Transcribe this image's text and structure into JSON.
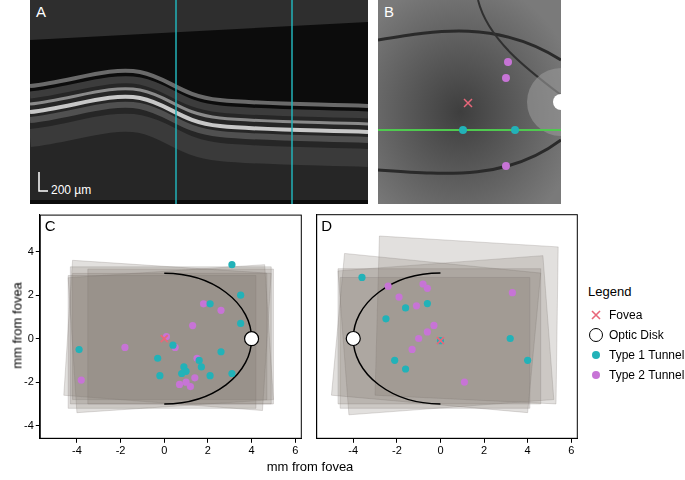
{
  "images": [
    {
      "label": "A",
      "scale_bar": "200 µm"
    },
    {
      "label": "B"
    }
  ],
  "x_label": "mm from fovea",
  "y_label": "mm from fovea",
  "legend_title": "Legend",
  "legend": "right",
  "chart_data": [
    {
      "type": "scatter",
      "label": "C",
      "xlim": [
        -5.7,
        6.3
      ],
      "xticks": [
        -4,
        -2,
        0,
        2,
        4,
        6
      ],
      "ylim": [
        -4.6,
        5.7
      ],
      "yticks": [
        -4,
        -2,
        0,
        2,
        4
      ],
      "grid": false,
      "series": [
        {
          "name": "Fovea",
          "color": "#e8677a",
          "marker": "x",
          "x": [
            0
          ],
          "y": [
            0
          ]
        },
        {
          "name": "Optic Disk",
          "color": "#ffffff",
          "marker": "ring",
          "x": [
            4
          ],
          "y": [
            0
          ]
        },
        {
          "name": "Type 1 Tunnel",
          "color": "#22b2b8",
          "marker": "dot",
          "x": [
            3.1,
            3.5,
            3.5,
            -3.9,
            -0.3,
            -0.2,
            0.4,
            0.9,
            1.0,
            0.8,
            1.6,
            1.7,
            2.1,
            2.6,
            3.1,
            2.1
          ],
          "y": [
            3.4,
            2.0,
            0.7,
            -0.5,
            -0.9,
            -1.7,
            -0.3,
            -1.3,
            -1.5,
            -1.6,
            -1.0,
            -1.3,
            -1.7,
            -0.6,
            -1.6,
            1.6
          ]
        },
        {
          "name": "Type 2 Tunnel",
          "color": "#c774d6",
          "marker": "dot",
          "x": [
            0.1,
            -1.8,
            -3.8,
            1.8,
            2.6,
            1.3,
            1.5,
            1.0,
            1.2,
            0.7,
            1.4,
            0.5
          ],
          "y": [
            0.1,
            -0.4,
            -1.9,
            1.6,
            1.3,
            0.6,
            -0.9,
            -2.0,
            -2.2,
            -2.1,
            -1.8,
            -0.4
          ]
        }
      ],
      "scan_areas": {
        "color": "#7a706b",
        "polygons": [
          [
            [
              -4.3,
              -3.0
            ],
            [
              4.9,
              -3.0
            ],
            [
              4.9,
              3.3
            ],
            [
              -4.3,
              3.3
            ]
          ],
          [
            [
              -4.6,
              -2.6
            ],
            [
              4.5,
              -3.3
            ],
            [
              4.9,
              3.0
            ],
            [
              -4.2,
              3.6
            ]
          ],
          [
            [
              -4.0,
              -3.4
            ],
            [
              5.0,
              -2.8
            ],
            [
              4.6,
              3.4
            ],
            [
              -4.4,
              2.8
            ]
          ],
          [
            [
              -4.2,
              -2.8
            ],
            [
              4.7,
              -2.8
            ],
            [
              4.7,
              3.0
            ],
            [
              -4.2,
              3.0
            ]
          ],
          [
            [
              -3.5,
              -3.0
            ],
            [
              5.0,
              -3.0
            ],
            [
              5.0,
              3.2
            ],
            [
              -3.5,
              3.2
            ]
          ],
          [
            [
              -4.4,
              -3.2
            ],
            [
              4.2,
              -3.2
            ],
            [
              4.2,
              2.9
            ],
            [
              -4.4,
              2.9
            ]
          ]
        ]
      },
      "arc": {
        "center": [
          0,
          0
        ],
        "x_radius": 4,
        "y_radius": 3
      }
    },
    {
      "type": "scatter",
      "label": "D",
      "xlim": [
        -5.7,
        6.3
      ],
      "xticks": [
        -4,
        -2,
        0,
        2,
        4,
        6
      ],
      "ylim": [
        -4.6,
        5.7
      ],
      "yticks": [
        -4,
        -2,
        0,
        2,
        4
      ],
      "grid": false,
      "tick_labels": "x",
      "series": [
        {
          "name": "Fovea",
          "color": "#e8677a",
          "marker": "x",
          "x": [
            0
          ],
          "y": [
            -0.1
          ]
        },
        {
          "name": "Optic Disk",
          "color": "#ffffff",
          "marker": "ring",
          "x": [
            -4
          ],
          "y": [
            0
          ]
        },
        {
          "name": "Type 1 Tunnel",
          "color": "#22b2b8",
          "marker": "dot",
          "x": [
            -3.6,
            -2.5,
            -2.1,
            -1.6,
            -1.6,
            0.0,
            3.2,
            4.0,
            -0.6
          ],
          "y": [
            2.8,
            0.9,
            -1.0,
            -1.4,
            1.4,
            -0.1,
            0.0,
            -1.0,
            1.6
          ]
        },
        {
          "name": "Type 2 Tunnel",
          "color": "#c774d6",
          "marker": "dot",
          "x": [
            -2.4,
            -1.9,
            -0.8,
            -0.6,
            -1.1,
            -1.0,
            -0.3,
            -1.3,
            3.3,
            1.1,
            -0.6
          ],
          "y": [
            2.4,
            1.9,
            2.5,
            2.3,
            1.5,
            0.0,
            0.6,
            -0.5,
            2.1,
            -2.0,
            0.3
          ]
        }
      ],
      "scan_areas": {
        "color": "#7a706b",
        "polygons": [
          [
            [
              -4.7,
              -3.0
            ],
            [
              4.6,
              -3.0
            ],
            [
              4.6,
              3.2
            ],
            [
              -4.7,
              3.2
            ]
          ],
          [
            [
              -5.0,
              -2.6
            ],
            [
              4.0,
              -3.4
            ],
            [
              4.6,
              3.0
            ],
            [
              -4.4,
              3.9
            ]
          ],
          [
            [
              -4.2,
              -3.5
            ],
            [
              5.2,
              -2.8
            ],
            [
              4.7,
              3.8
            ],
            [
              -4.7,
              3.1
            ]
          ],
          [
            [
              -3.0,
              -2.6
            ],
            [
              5.3,
              -3.0
            ],
            [
              5.4,
              4.2
            ],
            [
              -2.8,
              4.7
            ]
          ],
          [
            [
              -4.6,
              -3.2
            ],
            [
              4.1,
              -3.2
            ],
            [
              4.1,
              2.8
            ],
            [
              -4.6,
              2.8
            ]
          ]
        ]
      },
      "arc": {
        "center": [
          0,
          0
        ],
        "x_radius": 4,
        "y_radius": 3
      }
    }
  ]
}
